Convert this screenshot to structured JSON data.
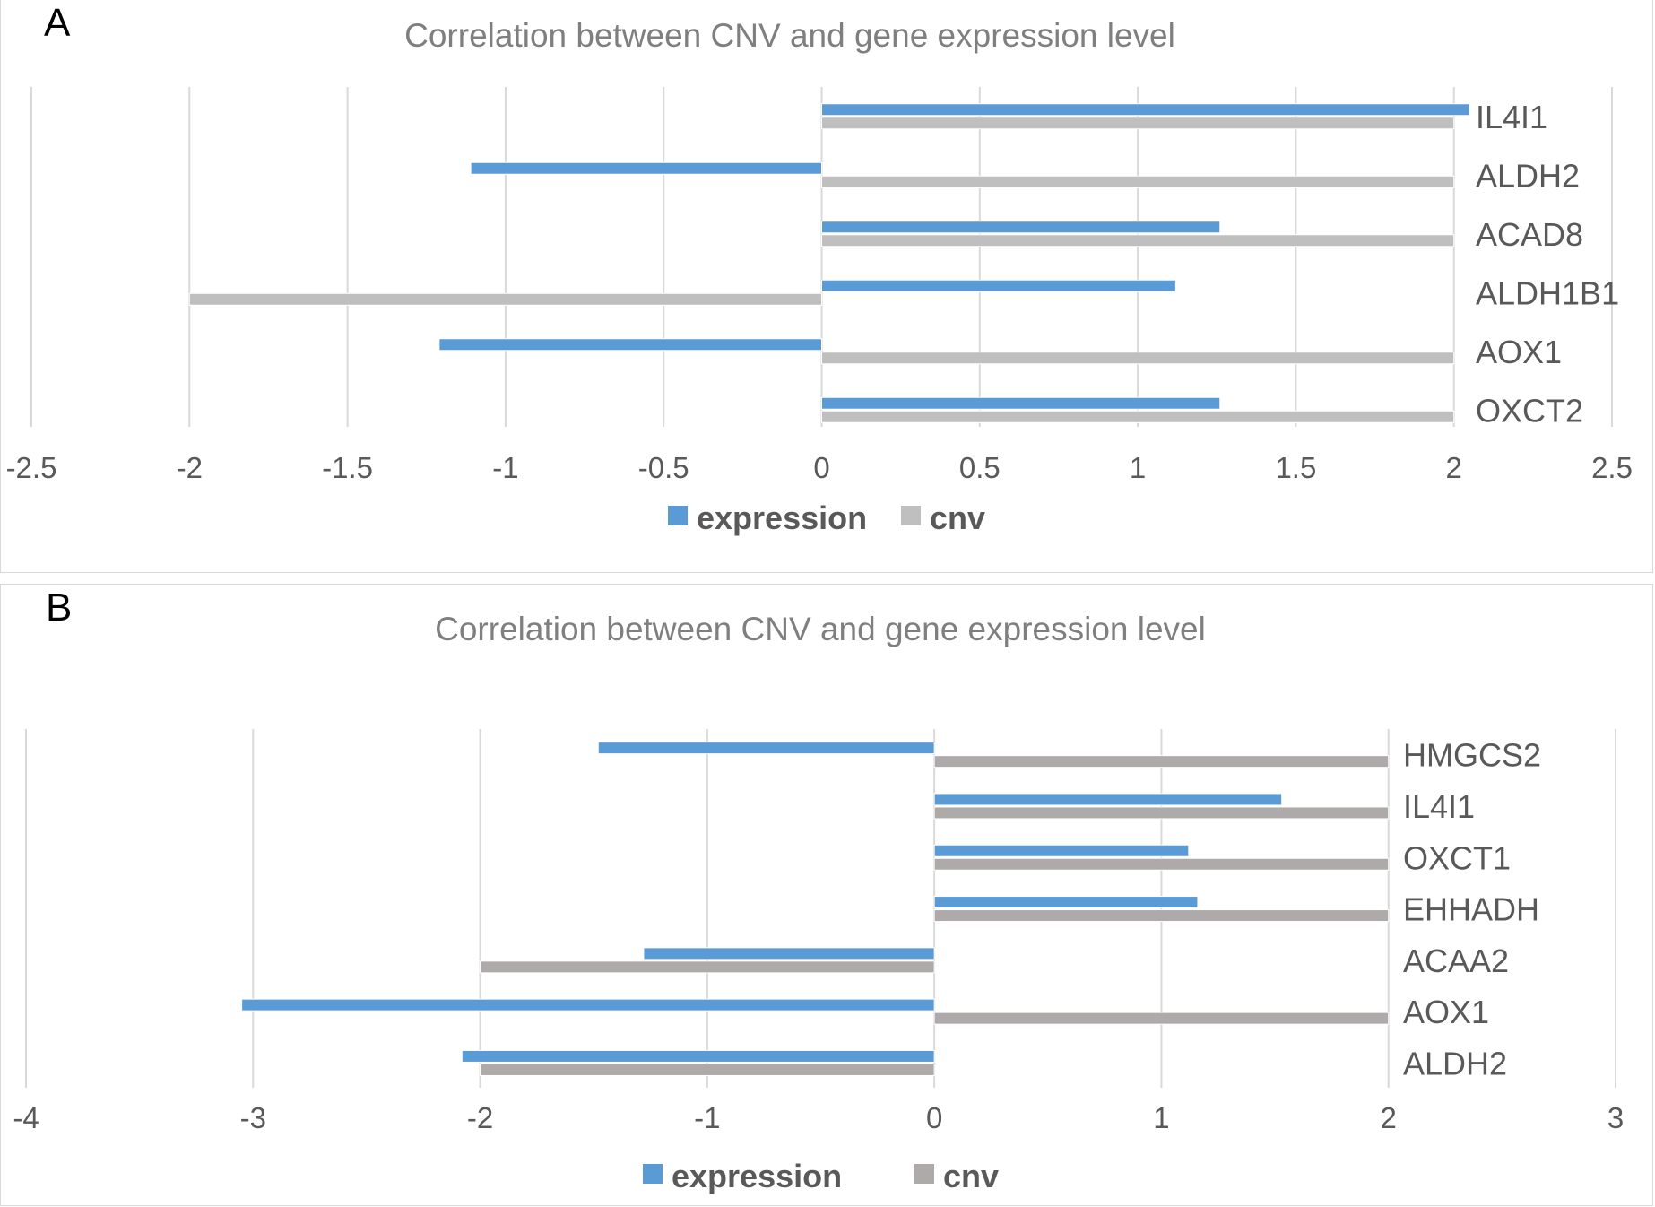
{
  "chart_data": [
    {
      "type": "bar",
      "orientation": "horizontal",
      "panel_label": "A",
      "title": "Correlation between CNV and gene expression level",
      "categories": [
        "IL4I1",
        "ALDH2",
        "ACAD8",
        "ALDH1B1",
        "AOX1",
        "OXCT2"
      ],
      "series": [
        {
          "name": "expression",
          "color": "#5b9bd5",
          "values": [
            2.05,
            -1.11,
            1.26,
            1.12,
            -1.21,
            1.26
          ]
        },
        {
          "name": "cnv",
          "color": "#bfbfbf",
          "values": [
            2,
            2,
            2,
            -2,
            2,
            2
          ]
        }
      ],
      "xlim": [
        -2.5,
        2.5
      ],
      "xticks": [
        "-2.5",
        "-2",
        "-1.5",
        "-1",
        "-0.5",
        "0",
        "0.5",
        "1",
        "1.5",
        "2",
        "2.5"
      ],
      "grid": true,
      "legend": "bottom"
    },
    {
      "type": "bar",
      "orientation": "horizontal",
      "panel_label": "B",
      "title": "Correlation between CNV and gene expression level",
      "categories": [
        "HMGCS2",
        "IL4I1",
        "OXCT1",
        "EHHADH",
        "ACAA2",
        "AOX1",
        "ALDH2"
      ],
      "series": [
        {
          "name": "expression",
          "color": "#5b9bd5",
          "values": [
            -1.48,
            1.53,
            1.12,
            1.16,
            -1.28,
            -3.05,
            -2.08
          ]
        },
        {
          "name": "cnv",
          "color": "#aeaaaa",
          "values": [
            2,
            2,
            2,
            2,
            -2,
            2,
            -2
          ]
        }
      ],
      "xlim": [
        -4,
        3
      ],
      "xticks": [
        "-4",
        "-3",
        "-2",
        "-1",
        "0",
        "1",
        "2",
        "3"
      ],
      "grid": true,
      "legend": "bottom"
    }
  ]
}
